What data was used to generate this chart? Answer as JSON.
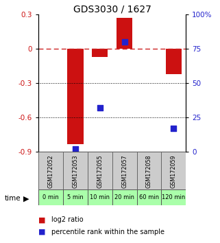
{
  "title": "GDS3030 / 1627",
  "samples": [
    "GSM172052",
    "GSM172053",
    "GSM172055",
    "GSM172057",
    "GSM172058",
    "GSM172059"
  ],
  "time_labels": [
    "0 min",
    "5 min",
    "10 min",
    "20 min",
    "60 min",
    "120 min"
  ],
  "log2_ratios": [
    0.0,
    -0.83,
    -0.07,
    0.27,
    0.0,
    -0.22
  ],
  "log2_bar_signs": [
    0,
    -1,
    -1,
    1,
    0,
    -1
  ],
  "percentile_ranks": [
    null,
    2.0,
    32.0,
    80.0,
    null,
    17.0
  ],
  "ylim_left": [
    -0.9,
    0.3
  ],
  "ylim_right": [
    0,
    100
  ],
  "yticks_left": [
    -0.9,
    -0.6,
    -0.3,
    0.0,
    0.3
  ],
  "yticks_right": [
    0,
    25,
    50,
    75,
    100
  ],
  "ytick_right_labels": [
    "0",
    "25",
    "50",
    "75",
    "100%"
  ],
  "bar_color": "#cc1111",
  "dot_color": "#2222cc",
  "dashed_line_color": "#cc2222",
  "sample_bg_color": "#cccccc",
  "time_bg_color": "#aaffaa",
  "legend_red": "#cc1111",
  "legend_blue": "#2222cc"
}
